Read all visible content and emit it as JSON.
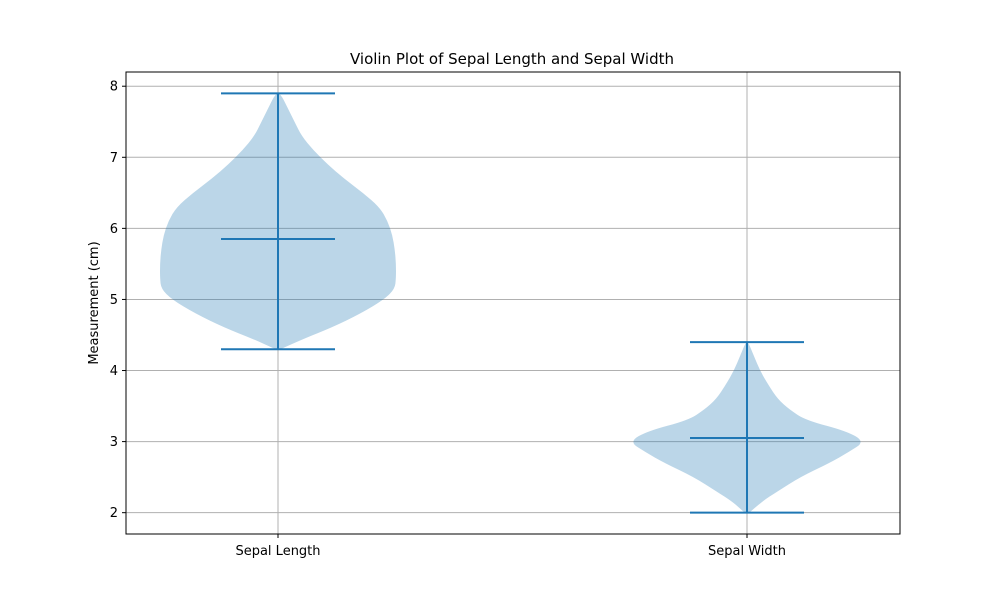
{
  "chart_data": {
    "type": "violin",
    "title": "Violin Plot of Sepal Length and Sepal Width",
    "xlabel": "",
    "ylabel": "Measurement (cm)",
    "ylim": [
      1.7,
      8.2
    ],
    "yticks": [
      2,
      3,
      4,
      5,
      6,
      7,
      8
    ],
    "grid": true,
    "colors": {
      "body": "#1f77b4",
      "body_opacity": 0.3,
      "lines": "#1f77b4"
    },
    "categories": [
      "Sepal Length",
      "Sepal Width"
    ],
    "violins": [
      {
        "name": "Sepal Length",
        "min": 4.3,
        "max": 7.9,
        "median": 5.85,
        "profile": [
          [
            4.3,
            0.02
          ],
          [
            4.45,
            0.22
          ],
          [
            4.6,
            0.45
          ],
          [
            4.8,
            0.7
          ],
          [
            5.0,
            0.9
          ],
          [
            5.15,
            0.99
          ],
          [
            5.3,
            1.0
          ],
          [
            5.5,
            1.0
          ],
          [
            5.7,
            0.99
          ],
          [
            5.9,
            0.97
          ],
          [
            6.1,
            0.93
          ],
          [
            6.3,
            0.86
          ],
          [
            6.5,
            0.72
          ],
          [
            6.7,
            0.56
          ],
          [
            6.9,
            0.42
          ],
          [
            7.1,
            0.3
          ],
          [
            7.3,
            0.2
          ],
          [
            7.5,
            0.14
          ],
          [
            7.7,
            0.08
          ],
          [
            7.9,
            0.02
          ]
        ]
      },
      {
        "name": "Sepal Width",
        "min": 2.0,
        "max": 4.4,
        "median": 3.05,
        "profile": [
          [
            2.0,
            0.02
          ],
          [
            2.15,
            0.12
          ],
          [
            2.3,
            0.26
          ],
          [
            2.5,
            0.45
          ],
          [
            2.7,
            0.7
          ],
          [
            2.85,
            0.86
          ],
          [
            3.0,
            1.0
          ],
          [
            3.15,
            0.84
          ],
          [
            3.3,
            0.5
          ],
          [
            3.45,
            0.36
          ],
          [
            3.6,
            0.26
          ],
          [
            3.8,
            0.18
          ],
          [
            4.0,
            0.11
          ],
          [
            4.2,
            0.06
          ],
          [
            4.4,
            0.01
          ]
        ]
      }
    ]
  }
}
